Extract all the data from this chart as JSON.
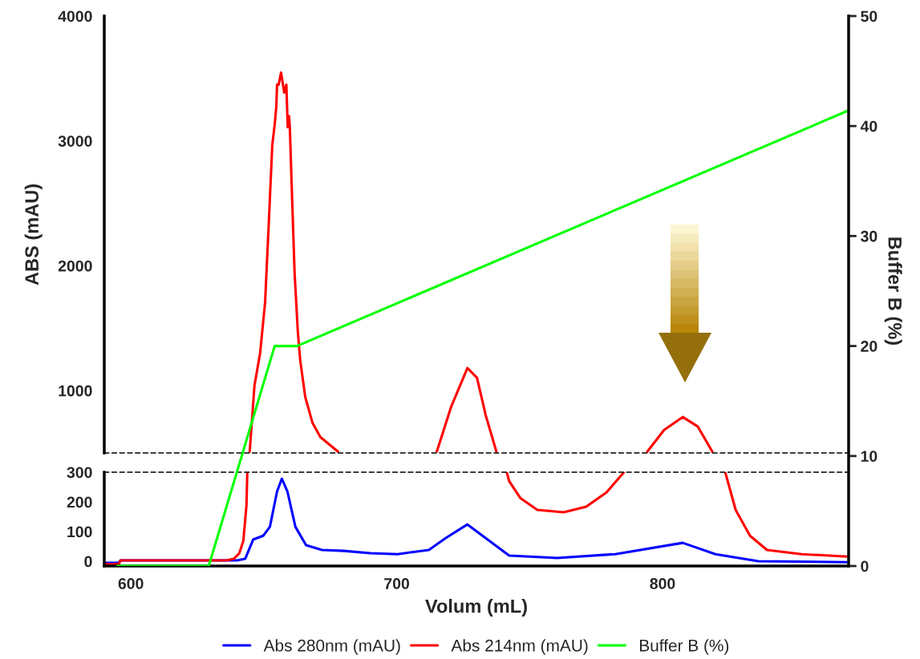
{
  "chart_data": [
    {
      "type": "line",
      "ylabel": "ABS (mAU)",
      "xlim": [
        590,
        870
      ],
      "ylim": [
        500,
        4000
      ],
      "yticks": [
        1000,
        2000,
        3000,
        4000
      ],
      "tick_labels": "y",
      "grid": false,
      "series": [
        {
          "color": "#ff0000",
          "x": [
            644.7,
            646.5,
            648.6,
            650.5,
            652.0,
            653.2,
            654.1,
            654.7,
            655.0,
            655.6,
            656.5,
            657.7,
            658.5,
            659.0,
            659.5,
            659.8,
            660.7,
            661.6,
            662.8,
            663.7,
            665.6,
            668.3,
            671.3,
            677.9,
            700,
            715.1,
            720.5,
            726.6,
            730.2,
            733.5,
            737.5,
            770,
            794.3,
            800.6,
            807.6,
            813.3,
            818.7
          ],
          "values": [
            511,
            1039,
            1296,
            1707,
            2395,
            2968,
            3129,
            3270,
            3450,
            3450,
            3547,
            3386,
            3450,
            3109,
            3199,
            3109,
            2511,
            1939,
            1476,
            1244,
            949,
            743,
            627,
            511,
            null,
            511,
            871,
            1180,
            1103,
            801,
            511,
            null,
            511,
            685,
            788,
            711,
            511
          ]
        }
      ]
    },
    {
      "type": "line",
      "xlabel": "Volum (mL)",
      "y2label": "Buffer B (%)",
      "xlim": [
        590,
        870
      ],
      "xticks": [
        600,
        700,
        800
      ],
      "ylim": [
        -16,
        300
      ],
      "yticks": [
        0,
        100,
        200,
        300
      ],
      "y2lim": [
        0,
        50
      ],
      "y2ticks": [
        0,
        10,
        20,
        30,
        40,
        50
      ],
      "grid": false,
      "legend": "bottom",
      "series": [
        {
          "name": "Abs 280nm (mAU)",
          "color": "#0000ff",
          "x": [
            590,
            595.5,
            596.1,
            640,
            643,
            646,
            649.8,
            652.3,
            655,
            656.8,
            658.9,
            661.9,
            665.9,
            671.9,
            680.1,
            690,
            700.3,
            712.1,
            718.4,
            726.6,
            733.5,
            742.3,
            760.4,
            782.2,
            807.6,
            819.9,
            836,
            869.5
          ],
          "values": [
            -5,
            -5,
            3,
            3,
            8,
            73,
            86,
            116,
            235,
            278,
            235,
            116,
            54,
            38,
            35,
            27,
            24,
            38,
            78,
            124,
            78,
            19,
            11,
            24,
            62,
            24,
            0,
            -3
          ]
        },
        {
          "name": "Abs 214nm (mAU)",
          "color": "#ff0000",
          "x": [
            590,
            595.5,
            596.1,
            636,
            638.7,
            640.8,
            642.3,
            643.5,
            643.8,
            700,
            741.4,
            742.3,
            746.5,
            752.9,
            762.8,
            771.3,
            778.9,
            785.5,
            800,
            823.6,
            827.5,
            832.9,
            839.3,
            852.3,
            869.5
          ],
          "values": [
            -10,
            -10,
            3,
            3,
            8,
            27,
            68,
            189,
            300,
            null,
            300,
            270,
            213,
            173,
            165,
            184,
            232,
            300,
            null,
            300,
            173,
            86,
            38,
            24,
            16
          ]
        },
        {
          "name": "Buffer B (%)",
          "color": "#00ff00",
          "axis": "y2",
          "x": [
            594.9,
            629.3,
            654.1,
            662.5,
            869.8
          ],
          "values": [
            0,
            0,
            20,
            20,
            41.4
          ]
        }
      ]
    }
  ]
}
